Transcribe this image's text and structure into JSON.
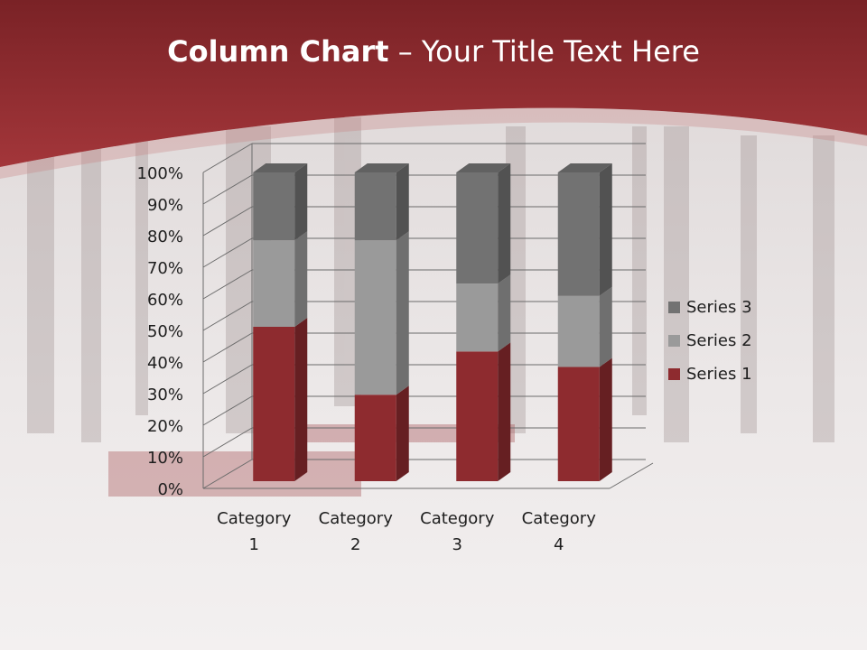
{
  "slide": {
    "title_bold": "Column Chart",
    "title_sep": "–",
    "title_rest": "Your Title Text Here"
  },
  "colors": {
    "header": "#8f2b2f",
    "series1": "#8e2b2f",
    "series2": "#9a9a9a",
    "series3": "#727272"
  },
  "chart_data": {
    "type": "bar",
    "stacking": "percent",
    "title": "",
    "xlabel": "",
    "ylabel": "",
    "ylim": [
      0,
      100
    ],
    "yticks": [
      "0%",
      "10%",
      "20%",
      "30%",
      "40%",
      "50%",
      "60%",
      "70%",
      "80%",
      "90%",
      "100%"
    ],
    "categories": [
      [
        "Category",
        "1"
      ],
      [
        "Category",
        "2"
      ],
      [
        "Category",
        "3"
      ],
      [
        "Category",
        "4"
      ]
    ],
    "series": [
      {
        "name": "Series 1",
        "values": [
          50,
          28,
          42,
          37
        ]
      },
      {
        "name": "Series 2",
        "values": [
          28,
          50,
          22,
          23
        ]
      },
      {
        "name": "Series 3",
        "values": [
          22,
          22,
          36,
          40
        ]
      }
    ],
    "legend_position": "right",
    "grid": true
  }
}
